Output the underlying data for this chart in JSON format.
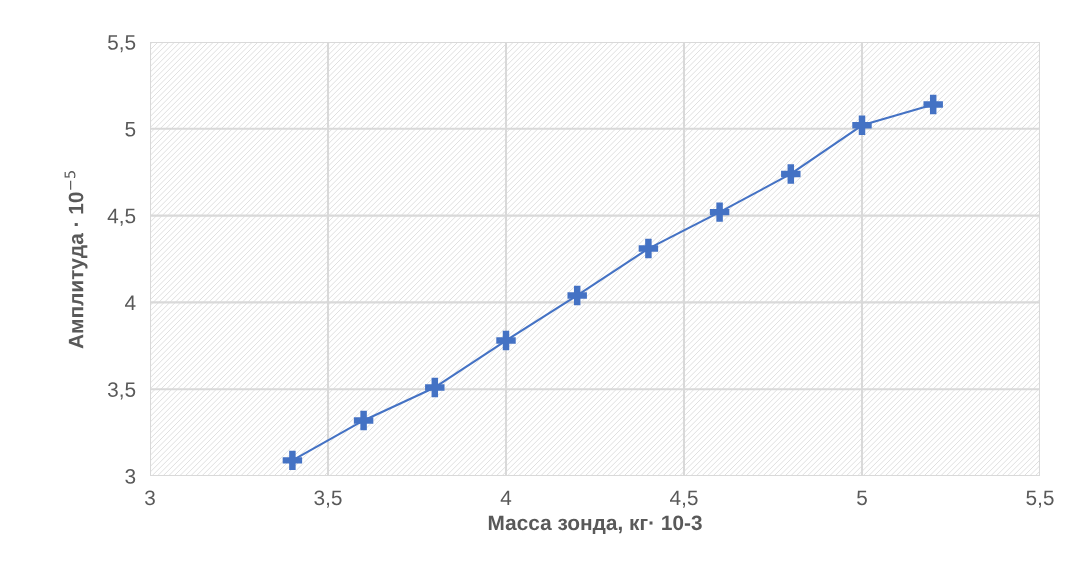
{
  "chart_data": {
    "type": "line",
    "xlabel": "Масса зонда, кг· 10-3",
    "ylabel": "Амплитуда · 10$^{−5}$",
    "x": [
      3.4,
      3.6,
      3.8,
      4.0,
      4.2,
      4.4,
      4.6,
      4.8,
      5.0,
      5.2
    ],
    "series": [
      {
        "color": "#4472c4",
        "values": [
          3.09,
          3.32,
          3.51,
          3.78,
          4.04,
          4.31,
          4.52,
          4.74,
          5.02,
          5.14
        ]
      }
    ],
    "xlim": [
      3,
      5.5
    ],
    "xticks": [
      3,
      {
        "value": 3.5,
        "label": "3,5"
      },
      4,
      {
        "value": 4.5,
        "label": "4,5"
      },
      5,
      {
        "value": 5.5,
        "label": "5,5"
      }
    ],
    "ylim": [
      3,
      5.5
    ],
    "yticks": [
      3,
      {
        "value": 3.5,
        "label": "3,5"
      },
      4,
      {
        "value": 4.5,
        "label": "4,5"
      },
      5,
      {
        "value": 5.5,
        "label": "5,5"
      }
    ],
    "grid": true,
    "marker": "cross",
    "line_style": "solid",
    "legend": false
  }
}
